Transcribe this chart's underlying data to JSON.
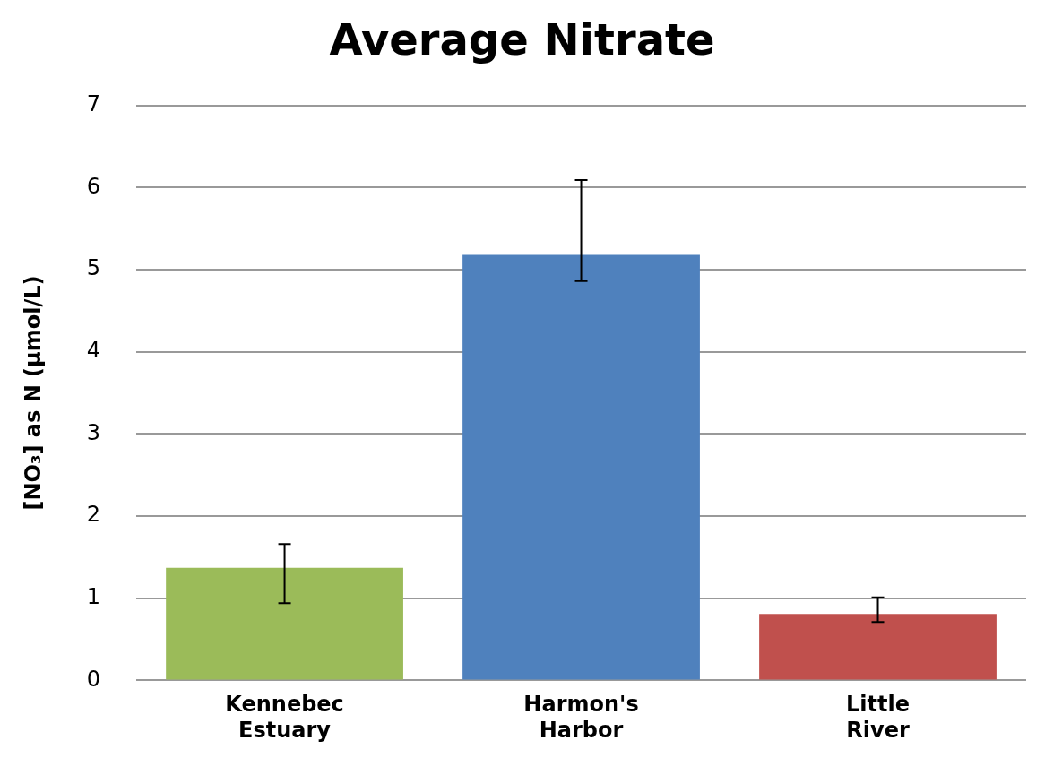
{
  "chart_data": {
    "type": "bar",
    "title": "Average Nitrate",
    "ylabel": "[NO₃] as N (µmol/L)",
    "categories": [
      "Kennebec Estuary",
      "Harmon's Harbor",
      "Little River"
    ],
    "values": [
      1.37,
      5.18,
      0.81
    ],
    "colors": [
      "#9bbb59",
      "#4f81bd",
      "#c0504d"
    ],
    "errors": [
      [
        0.94,
        1.66
      ],
      [
        4.86,
        6.09
      ],
      [
        0.71,
        1.01
      ]
    ],
    "ylim": [
      0,
      7
    ],
    "yticks": [
      0,
      1,
      2,
      3,
      4,
      5,
      6,
      7
    ],
    "grid": "y",
    "legend": false
  }
}
